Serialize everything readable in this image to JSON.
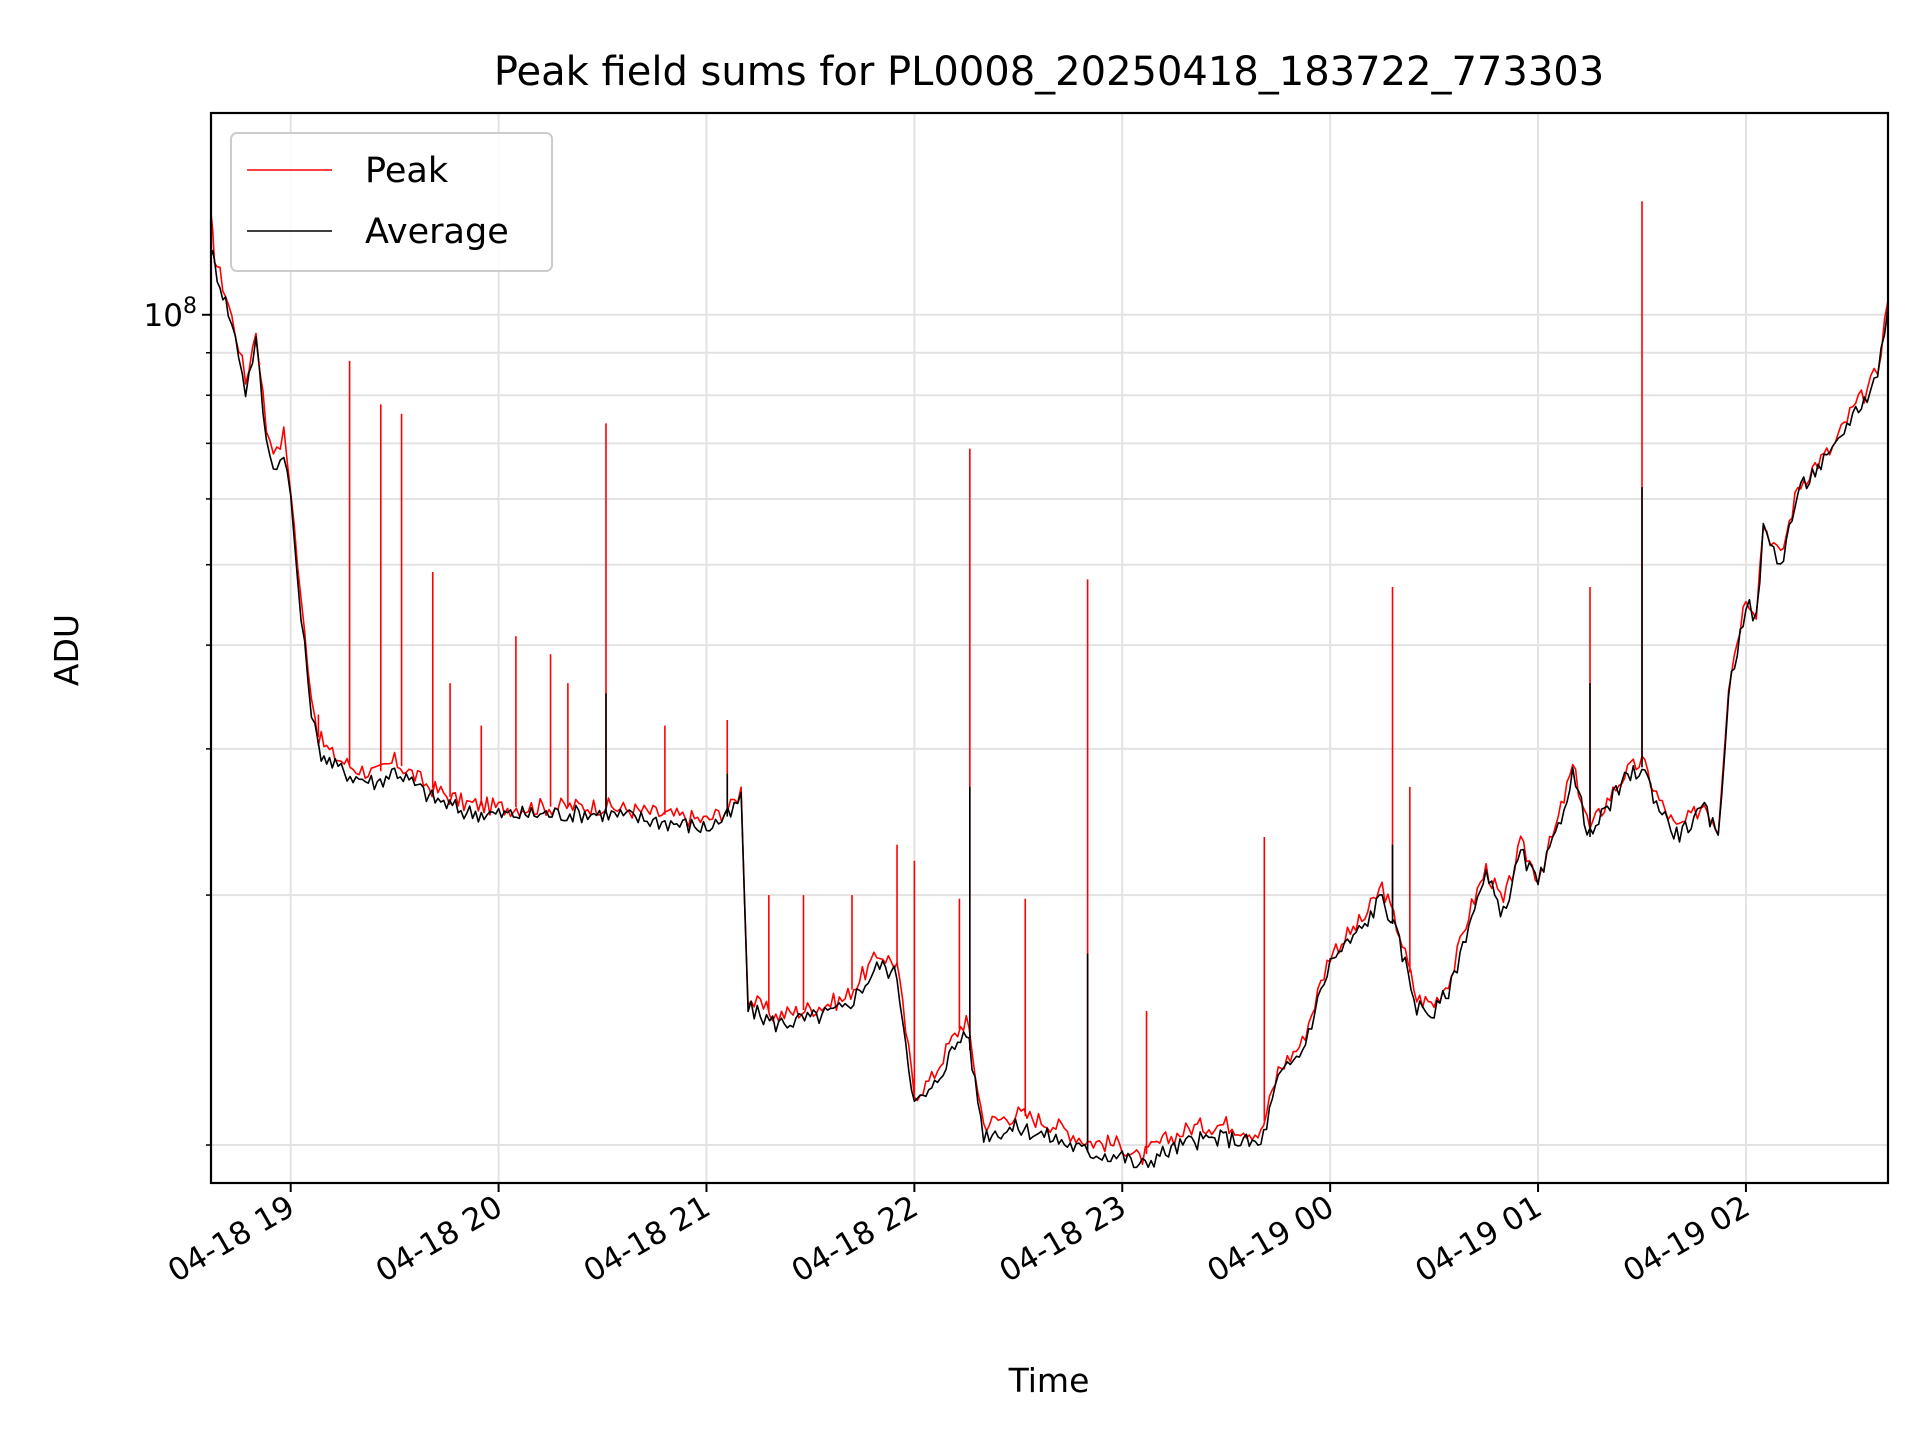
{
  "chart_data": {
    "type": "line",
    "title": "Peak field sums for PL0008_20250418_183722_773303",
    "xlabel": "Time",
    "ylabel": "ADU",
    "y_scale": "log",
    "ylim": [
      9000000,
      175000000
    ],
    "xlim": [
      "2025-04-18 18:37",
      "2025-04-19 02:41"
    ],
    "x_ticks": [
      "04-18 19",
      "04-18 20",
      "04-18 21",
      "04-18 22",
      "04-18 23",
      "04-19 00",
      "04-19 01",
      "04-19 02"
    ],
    "y_ticks": [
      "10^8"
    ],
    "grid": true,
    "legend_position": "upper-left",
    "series": [
      {
        "name": "Peak",
        "color": "#ff0000",
        "x": [
          "2025-04-18 18:37",
          "2025-04-18 18:38",
          "2025-04-18 18:42",
          "2025-04-18 18:45",
          "2025-04-18 18:47",
          "2025-04-18 18:50",
          "2025-04-18 18:53",
          "2025-04-18 18:56",
          "2025-04-18 18:58",
          "2025-04-18 19:00",
          "2025-04-18 19:03",
          "2025-04-18 19:06",
          "2025-04-18 19:08",
          "2025-04-18 19:12",
          "2025-04-18 19:18",
          "2025-04-18 19:25",
          "2025-04-18 19:30",
          "2025-04-18 19:35",
          "2025-04-18 19:40",
          "2025-04-18 19:50",
          "2025-04-18 20:00",
          "2025-04-18 20:30",
          "2025-04-18 21:00",
          "2025-04-18 21:07",
          "2025-04-18 21:10",
          "2025-04-18 21:12",
          "2025-04-18 21:20",
          "2025-04-18 21:30",
          "2025-04-18 21:40",
          "2025-04-18 21:45",
          "2025-04-18 21:50",
          "2025-04-18 21:55",
          "2025-04-18 22:00",
          "2025-04-18 22:05",
          "2025-04-18 22:10",
          "2025-04-18 22:15",
          "2025-04-18 22:20",
          "2025-04-18 22:30",
          "2025-04-18 22:40",
          "2025-04-18 22:50",
          "2025-04-18 23:00",
          "2025-04-18 23:05",
          "2025-04-18 23:10",
          "2025-04-18 23:20",
          "2025-04-18 23:30",
          "2025-04-18 23:40",
          "2025-04-18 23:45",
          "2025-04-18 23:52",
          "2025-04-19 00:00",
          "2025-04-19 00:10",
          "2025-04-19 00:15",
          "2025-04-19 00:20",
          "2025-04-19 00:25",
          "2025-04-19 00:30",
          "2025-04-19 00:35",
          "2025-04-19 00:40",
          "2025-04-19 00:45",
          "2025-04-19 00:50",
          "2025-04-19 00:55",
          "2025-04-19 01:00",
          "2025-04-19 01:05",
          "2025-04-19 01:10",
          "2025-04-19 01:15",
          "2025-04-19 01:20",
          "2025-04-19 01:25",
          "2025-04-19 01:30",
          "2025-04-19 01:35",
          "2025-04-19 01:40",
          "2025-04-19 01:45",
          "2025-04-19 01:48",
          "2025-04-19 01:52",
          "2025-04-19 01:55",
          "2025-04-19 02:00",
          "2025-04-19 02:03",
          "2025-04-19 02:05",
          "2025-04-19 02:08",
          "2025-04-19 02:10",
          "2025-04-19 02:15",
          "2025-04-19 02:20",
          "2025-04-19 02:25",
          "2025-04-19 02:30",
          "2025-04-19 02:35",
          "2025-04-19 02:38",
          "2025-04-19 02:41"
        ],
        "values": [
          130000000,
          118000000,
          103000000,
          92000000,
          83000000,
          96000000,
          73000000,
          68000000,
          72000000,
          62000000,
          45000000,
          35000000,
          31000000,
          29500000,
          28500000,
          28000000,
          29000000,
          28000000,
          27000000,
          25800000,
          25500000,
          25600000,
          24600000,
          25500000,
          26800000,
          15000000,
          14300000,
          14600000,
          15000000,
          16000000,
          17000000,
          16500000,
          11500000,
          12000000,
          13200000,
          14200000,
          10600000,
          10900000,
          10600000,
          10100000,
          10000000,
          9600000,
          10000000,
          10500000,
          10600000,
          10300000,
          12300000,
          13300000,
          17000000,
          18800000,
          20500000,
          18000000,
          15000000,
          14800000,
          16000000,
          19000000,
          21500000,
          19500000,
          23000000,
          21000000,
          24000000,
          28500000,
          24000000,
          26000000,
          28000000,
          29000000,
          26000000,
          24000000,
          25000000,
          25800000,
          24000000,
          36000000,
          46000000,
          44000000,
          56000000,
          53000000,
          51000000,
          62000000,
          66000000,
          69000000,
          76000000,
          81000000,
          86000000,
          104000000
        ]
      },
      {
        "name": "Average",
        "color": "#000000",
        "x": [
          "2025-04-18 18:37",
          "2025-04-18 18:38",
          "2025-04-18 18:42",
          "2025-04-18 18:45",
          "2025-04-18 18:47",
          "2025-04-18 18:50",
          "2025-04-18 18:53",
          "2025-04-18 18:56",
          "2025-04-18 18:58",
          "2025-04-18 19:00",
          "2025-04-18 19:03",
          "2025-04-18 19:06",
          "2025-04-18 19:08",
          "2025-04-18 19:12",
          "2025-04-18 19:18",
          "2025-04-18 19:25",
          "2025-04-18 19:30",
          "2025-04-18 19:35",
          "2025-04-18 19:40",
          "2025-04-18 19:50",
          "2025-04-18 20:00",
          "2025-04-18 20:30",
          "2025-04-18 21:00",
          "2025-04-18 21:07",
          "2025-04-18 21:10",
          "2025-04-18 21:12",
          "2025-04-18 21:20",
          "2025-04-18 21:30",
          "2025-04-18 21:40",
          "2025-04-18 21:45",
          "2025-04-18 21:50",
          "2025-04-18 21:55",
          "2025-04-18 22:00",
          "2025-04-18 22:05",
          "2025-04-18 22:10",
          "2025-04-18 22:15",
          "2025-04-18 22:20",
          "2025-04-18 22:30",
          "2025-04-18 22:40",
          "2025-04-18 22:50",
          "2025-04-18 23:00",
          "2025-04-18 23:05",
          "2025-04-18 23:10",
          "2025-04-18 23:20",
          "2025-04-18 23:30",
          "2025-04-18 23:40",
          "2025-04-18 23:45",
          "2025-04-18 23:52",
          "2025-04-19 00:00",
          "2025-04-19 00:10",
          "2025-04-19 00:15",
          "2025-04-19 00:20",
          "2025-04-19 00:25",
          "2025-04-19 00:30",
          "2025-04-19 00:35",
          "2025-04-19 00:40",
          "2025-04-19 00:45",
          "2025-04-19 00:50",
          "2025-04-19 00:55",
          "2025-04-19 01:00",
          "2025-04-19 01:05",
          "2025-04-19 01:10",
          "2025-04-19 01:15",
          "2025-04-19 01:20",
          "2025-04-19 01:25",
          "2025-04-19 01:30",
          "2025-04-19 01:35",
          "2025-04-19 01:40",
          "2025-04-19 01:45",
          "2025-04-19 01:48",
          "2025-04-19 01:52",
          "2025-04-19 01:55",
          "2025-04-19 02:00",
          "2025-04-19 02:03",
          "2025-04-19 02:05",
          "2025-04-19 02:08",
          "2025-04-19 02:10",
          "2025-04-19 02:15",
          "2025-04-19 02:20",
          "2025-04-19 02:25",
          "2025-04-19 02:30",
          "2025-04-19 02:35",
          "2025-04-19 02:38",
          "2025-04-19 02:41"
        ],
        "values": [
          120000000,
          115000000,
          101000000,
          90000000,
          81000000,
          93000000,
          70000000,
          65000000,
          69000000,
          60000000,
          43000000,
          33500000,
          30000000,
          28700000,
          27800000,
          27300000,
          28300000,
          27300000,
          26300000,
          25200000,
          25000000,
          25100000,
          24100000,
          25000000,
          26200000,
          14600000,
          14000000,
          14200000,
          14600000,
          15500000,
          16500000,
          16000000,
          11200000,
          11600000,
          12800000,
          13800000,
          10300000,
          10500000,
          10200000,
          9800000,
          9700000,
          9400000,
          9700000,
          10100000,
          10200000,
          10000000,
          12000000,
          13000000,
          16600000,
          18400000,
          20000000,
          17500000,
          14700000,
          14400000,
          15600000,
          18500000,
          21000000,
          19000000,
          22500000,
          20600000,
          23500000,
          28000000,
          23500000,
          25500000,
          27500000,
          28500000,
          25500000,
          23600000,
          24600000,
          25300000,
          23600000,
          35000000,
          45000000,
          43000000,
          55000000,
          52000000,
          50000000,
          61000000,
          65000000,
          68000000,
          75000000,
          80000000,
          85000000,
          102000000
        ]
      }
    ],
    "spikes": {
      "Peak": [
        {
          "x": "2025-04-18 18:51",
          "y": 87000000
        },
        {
          "x": "2025-04-18 19:08",
          "y": 33000000
        },
        {
          "x": "2025-04-18 19:17",
          "y": 88000000
        },
        {
          "x": "2025-04-18 19:26",
          "y": 78000000
        },
        {
          "x": "2025-04-18 19:32",
          "y": 76000000
        },
        {
          "x": "2025-04-18 19:41",
          "y": 49000000
        },
        {
          "x": "2025-04-18 19:46",
          "y": 36000000
        },
        {
          "x": "2025-04-18 19:55",
          "y": 32000000
        },
        {
          "x": "2025-04-18 20:05",
          "y": 41000000
        },
        {
          "x": "2025-04-18 20:15",
          "y": 39000000
        },
        {
          "x": "2025-04-18 20:20",
          "y": 36000000
        },
        {
          "x": "2025-04-18 20:31",
          "y": 74000000
        },
        {
          "x": "2025-04-18 20:48",
          "y": 32000000
        },
        {
          "x": "2025-04-18 21:06",
          "y": 32500000
        },
        {
          "x": "2025-04-18 21:18",
          "y": 20000000
        },
        {
          "x": "2025-04-18 21:28",
          "y": 20000000
        },
        {
          "x": "2025-04-18 21:42",
          "y": 20000000
        },
        {
          "x": "2025-04-18 21:55",
          "y": 23000000
        },
        {
          "x": "2025-04-18 22:00",
          "y": 22000000
        },
        {
          "x": "2025-04-18 22:13",
          "y": 19800000
        },
        {
          "x": "2025-04-18 22:16",
          "y": 69000000
        },
        {
          "x": "2025-04-18 22:32",
          "y": 19800000
        },
        {
          "x": "2025-04-18 22:50",
          "y": 48000000
        },
        {
          "x": "2025-04-18 23:07",
          "y": 14500000
        },
        {
          "x": "2025-04-18 23:41",
          "y": 23500000
        },
        {
          "x": "2025-04-19 00:18",
          "y": 47000000
        },
        {
          "x": "2025-04-19 00:23",
          "y": 27000000
        },
        {
          "x": "2025-04-19 01:15",
          "y": 47000000
        },
        {
          "x": "2025-04-19 01:30",
          "y": 137000000
        }
      ],
      "Average": [
        {
          "x": "2025-04-18 20:31",
          "y": 35000000
        },
        {
          "x": "2025-04-18 21:06",
          "y": 28000000
        },
        {
          "x": "2025-04-18 22:16",
          "y": 27000000
        },
        {
          "x": "2025-04-18 22:50",
          "y": 17000000
        },
        {
          "x": "2025-04-19 00:18",
          "y": 23000000
        },
        {
          "x": "2025-04-19 01:15",
          "y": 36000000
        },
        {
          "x": "2025-04-19 01:30",
          "y": 62000000
        }
      ]
    }
  }
}
